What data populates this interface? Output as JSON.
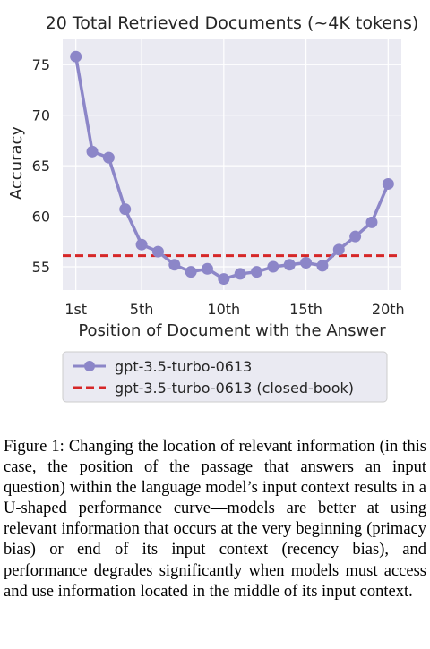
{
  "chart_data": {
    "type": "line",
    "title": "20 Total Retrieved Documents (~4K tokens)",
    "xlabel": "Position of Document with the Answer",
    "ylabel": "Accuracy",
    "x": [
      1,
      2,
      3,
      4,
      5,
      6,
      7,
      8,
      9,
      10,
      11,
      12,
      13,
      14,
      15,
      16,
      17,
      18,
      19,
      20
    ],
    "series": [
      {
        "name": "gpt-3.5-turbo-0613",
        "color": "#8c86c8",
        "values": [
          75.8,
          66.4,
          65.8,
          60.7,
          57.2,
          56.5,
          55.2,
          54.5,
          54.8,
          53.8,
          54.3,
          54.5,
          55.0,
          55.2,
          55.4,
          55.1,
          56.7,
          58.0,
          59.4,
          63.2
        ]
      }
    ],
    "reference_line": {
      "name": "gpt-3.5-turbo-0613 (closed-book)",
      "value": 56.1,
      "color": "#d62728",
      "style": "dashed"
    },
    "xticks": [
      1,
      5,
      10,
      15,
      20
    ],
    "xtick_labels": [
      "1st",
      "5th",
      "10th",
      "15th",
      "20th"
    ],
    "yticks": [
      55,
      60,
      65,
      70,
      75
    ],
    "yrange": [
      52.7,
      77.5
    ],
    "xrange": [
      0.2,
      20.8
    ],
    "grid": true,
    "legend_position": "below"
  },
  "caption": "Figure 1: Changing the location of relevant information (in this case, the position of the passage that answers an input question) within the language model’s input context results in a U-shaped performance curve—models are better at using relevant information that occurs at the very beginning (primacy bias) or end of its input context (recency bias), and performance degrades significantly when models must access and use information located in the middle of its input context."
}
